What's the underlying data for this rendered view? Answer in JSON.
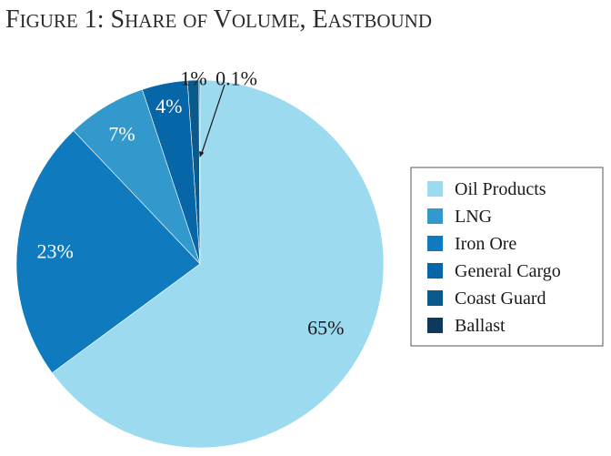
{
  "chart_data": {
    "type": "pie",
    "title": "Figure 1: Share of Volume, Eastbound",
    "start_angle_deg": 0,
    "direction": "clockwise",
    "legend_placement": "right",
    "slices": [
      {
        "name": "Oil Products",
        "value": 64.9,
        "label": "65%",
        "color": "#9bdaef",
        "label_color": "#1a1a1a"
      },
      {
        "name": "LNG",
        "value": 7.0,
        "label": "7%",
        "color": "#3399cc",
        "label_color": "#ffffff"
      },
      {
        "name": "Iron Ore",
        "value": 23.0,
        "label": "23%",
        "color": "#0f7bbe",
        "label_color": "#ffffff"
      },
      {
        "name": "General Cargo",
        "value": 4.0,
        "label": "4%",
        "color": "#0666a8",
        "label_color": "#ffffff"
      },
      {
        "name": "Coast Guard",
        "value": 1.0,
        "label": "1%",
        "color": "#0a5a8c",
        "label_color": "#1a1a1a"
      },
      {
        "name": "Ballast",
        "value": 0.1,
        "label": "0.1%",
        "color": "#0b3a5c",
        "label_color": "#1a1a1a"
      }
    ],
    "display_order": [
      "Iron Ore",
      "LNG",
      "General Cargo",
      "Coast Guard",
      "Ballast",
      "Oil Products"
    ]
  }
}
